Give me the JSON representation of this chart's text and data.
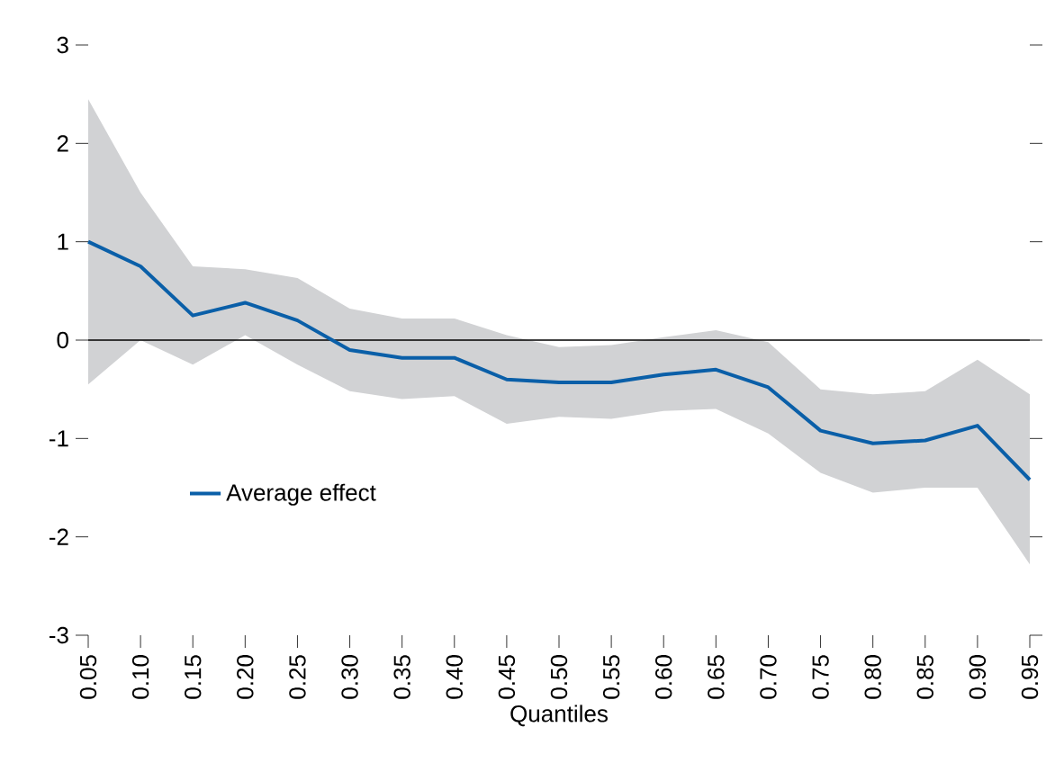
{
  "chart_data": {
    "type": "line",
    "xlabel": "Quantiles",
    "categories": [
      "0.05",
      "0.10",
      "0.15",
      "0.20",
      "0.25",
      "0.30",
      "0.35",
      "0.40",
      "0.45",
      "0.50",
      "0.55",
      "0.60",
      "0.65",
      "0.70",
      "0.75",
      "0.80",
      "0.85",
      "0.90",
      "0.95"
    ],
    "series": [
      {
        "name": "Average effect",
        "color": "#0a5fa8",
        "values": [
          1.0,
          0.75,
          0.25,
          0.38,
          0.2,
          -0.1,
          -0.18,
          -0.18,
          -0.4,
          -0.43,
          -0.43,
          -0.35,
          -0.3,
          -0.48,
          -0.92,
          -1.05,
          -1.02,
          -0.87,
          -1.42
        ],
        "upper": [
          2.45,
          1.5,
          0.75,
          0.72,
          0.63,
          0.32,
          0.22,
          0.22,
          0.05,
          -0.07,
          -0.05,
          0.03,
          0.1,
          -0.02,
          -0.5,
          -0.55,
          -0.52,
          -0.2,
          -0.55
        ],
        "lower": [
          -0.45,
          0.0,
          -0.25,
          0.05,
          -0.25,
          -0.52,
          -0.6,
          -0.57,
          -0.85,
          -0.78,
          -0.8,
          -0.72,
          -0.7,
          -0.95,
          -1.35,
          -1.55,
          -1.5,
          -1.5,
          -2.28
        ]
      }
    ],
    "ylim": [
      -3,
      3
    ],
    "yticks": [
      -3,
      -2,
      -1,
      0,
      1,
      2,
      3
    ],
    "ref_lines": [
      {
        "axis": "y",
        "value": 0,
        "color": "#000000"
      }
    ],
    "legend": "bottom left",
    "marker": "none",
    "line_style": "solid"
  }
}
